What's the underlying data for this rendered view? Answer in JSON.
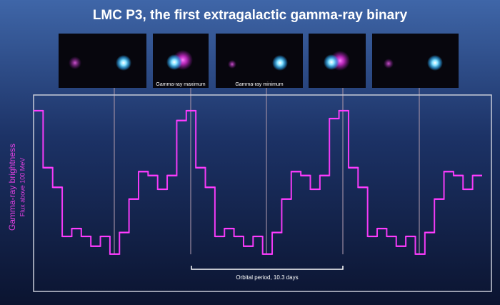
{
  "chart_data": {
    "type": "step",
    "title": "LMC P3, the first extragalactic gamma-ray binary",
    "y_label": "Gamma-ray brightness",
    "y_sublabel": "Flux above 100 MeV",
    "image_labels": [
      "Gamma-ray maximum",
      "Gamma-ray minimum"
    ],
    "period_label": "Orbital period, 10.3 days",
    "color": "#ff3cff",
    "ylim": [
      0,
      100
    ],
    "values": [
      92,
      63,
      53,
      28,
      32,
      28,
      23,
      28,
      19,
      30,
      47,
      61,
      59,
      52,
      59,
      87,
      92,
      63,
      53,
      28,
      32,
      28,
      23,
      28,
      19,
      30,
      47,
      61,
      59,
      52,
      59,
      88,
      92,
      63,
      53,
      28,
      32,
      28,
      23,
      28,
      19,
      30,
      47,
      61,
      59,
      52,
      59
    ]
  }
}
